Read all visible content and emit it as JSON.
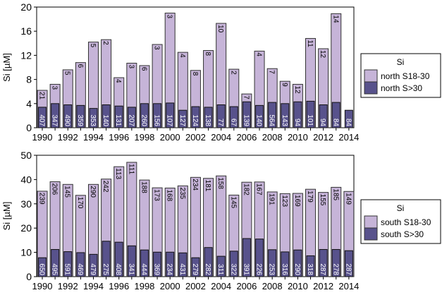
{
  "colors": {
    "light": "#c6b4d8",
    "dark": "#58528c",
    "light_label": "#000000",
    "dark_label": "#ffffff"
  },
  "chart_data": [
    {
      "type": "bar",
      "title": "",
      "xlabel": "",
      "ylabel": "Si [µM]",
      "ylim": [
        0,
        20
      ],
      "yticks": [
        "0",
        "4",
        "8",
        "12",
        "16",
        "20"
      ],
      "ytick_values": [
        0,
        4,
        8,
        12,
        16,
        20
      ],
      "categories": [
        "1990",
        "1991",
        "1992",
        "1993",
        "1994",
        "1995",
        "1996",
        "1997",
        "1998",
        "1999",
        "2000",
        "2001",
        "2002",
        "2003",
        "2004",
        "2005",
        "2006",
        "2007",
        "2008",
        "2009",
        "2010",
        "2011",
        "2012",
        "2013",
        "2014"
      ],
      "xtick_labels": [
        "1990",
        "1992",
        "1994",
        "1996",
        "1998",
        "2000",
        "2002",
        "2004",
        "2006",
        "2008",
        "2010",
        "2012",
        "2014"
      ],
      "legend": {
        "title": "Si",
        "placement": "right"
      },
      "series": [
        {
          "name": "north S18-30",
          "color_key": "light",
          "values": [
            6.2,
            7.2,
            9.6,
            10.8,
            14.2,
            14.6,
            8.3,
            10.7,
            10.3,
            13.8,
            19.0,
            12.5,
            9.5,
            12.8,
            17.3,
            9.7,
            5.6,
            12.7,
            9.8,
            7.7,
            7.2,
            14.8,
            13.1,
            18.9,
            null
          ],
          "labels": [
            "21",
            "3",
            "5",
            "6",
            "5",
            "2",
            "4",
            "3",
            "6",
            "3",
            "3",
            "4",
            "8",
            "8",
            "10",
            "2",
            "7",
            "4",
            "7",
            "9",
            "12",
            "11",
            "12",
            "14",
            ""
          ]
        },
        {
          "name": "north S>30",
          "color_key": "dark",
          "values": [
            3.4,
            4.0,
            3.8,
            3.7,
            3.2,
            3.8,
            3.6,
            3.4,
            4.0,
            4.0,
            4.1,
            2.9,
            3.5,
            3.4,
            3.8,
            3.5,
            4.3,
            3.7,
            4.2,
            4.0,
            4.3,
            4.4,
            3.8,
            4.2,
            2.9
          ],
          "labels": [
            "407",
            "347",
            "490",
            "359",
            "353",
            "140",
            "131",
            "207",
            "260",
            "156",
            "107",
            "127",
            "124",
            "138",
            "77",
            "67",
            "139",
            "140",
            "564",
            "143",
            "94",
            "101",
            "94",
            "84",
            "84"
          ]
        }
      ]
    },
    {
      "type": "bar",
      "title": "",
      "xlabel": "",
      "ylabel": "Si [µM]",
      "ylim": [
        0,
        50
      ],
      "yticks": [
        "0",
        "10",
        "20",
        "30",
        "40",
        "50"
      ],
      "ytick_values": [
        0,
        10,
        20,
        30,
        40,
        50
      ],
      "categories": [
        "1990",
        "1991",
        "1992",
        "1993",
        "1994",
        "1995",
        "1996",
        "1997",
        "1998",
        "1999",
        "2000",
        "2001",
        "2002",
        "2003",
        "2004",
        "2005",
        "2006",
        "2007",
        "2008",
        "2009",
        "2010",
        "2011",
        "2012",
        "2013",
        "2014"
      ],
      "xtick_labels": [
        "1990",
        "1992",
        "1994",
        "1996",
        "1998",
        "2000",
        "2002",
        "2004",
        "2006",
        "2008",
        "2010",
        "2012",
        "2014"
      ],
      "legend": {
        "title": "Si",
        "placement": "right"
      },
      "series": [
        {
          "name": "south S18-30",
          "color_key": "light",
          "values": [
            35.2,
            39.1,
            38.0,
            33.5,
            38.0,
            40.2,
            45.3,
            47.1,
            39.8,
            36.6,
            36.5,
            37.4,
            40.9,
            40.5,
            41.5,
            33.6,
            38.9,
            39.0,
            34.9,
            34.2,
            34.3,
            36.0,
            34.7,
            36.8,
            35.1
          ],
          "labels": [
            "239",
            "206",
            "145",
            "170",
            "290",
            "242",
            "113",
            "111",
            "188",
            "173",
            "168",
            "235",
            "234",
            "181",
            "158",
            "145",
            "182",
            "167",
            "191",
            "123",
            "169",
            "179",
            "155",
            "185",
            "149"
          ]
        },
        {
          "name": "south S>30",
          "color_key": "dark",
          "values": [
            7.8,
            11.2,
            10.3,
            9.9,
            9.2,
            14.6,
            14.2,
            12.7,
            11.0,
            10.1,
            10.1,
            9.8,
            7.8,
            12.0,
            8.4,
            10.5,
            15.7,
            15.5,
            11.1,
            10.2,
            11.0,
            8.6,
            11.2,
            11.2,
            10.7
          ],
          "labels": [
            "650",
            "495",
            "591",
            "469",
            "479",
            "275",
            "408",
            "341",
            "444",
            "369",
            "234",
            "431",
            "279",
            "282",
            "311",
            "322",
            "391",
            "226",
            "253",
            "316",
            "290",
            "318",
            "287",
            "278",
            "287"
          ]
        }
      ]
    }
  ]
}
